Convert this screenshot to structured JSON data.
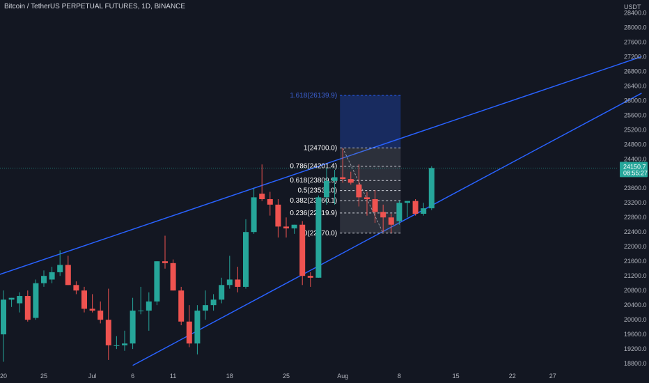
{
  "header": {
    "title": "Bitcoin / TetherUS PERPETUAL FUTURES, 1D, BINANCE",
    "currency": "USDT"
  },
  "colors": {
    "background": "#131722",
    "up": "#26a69a",
    "down": "#ef5350",
    "trendline": "#2962ff",
    "axis_text": "#b2b5be",
    "price_tag": "#26a69a"
  },
  "price_tag": {
    "price": "24150.7",
    "countdown": "08:55:27"
  },
  "chart_data": {
    "type": "candlestick",
    "yaxis_ticks": [
      18800,
      19200,
      19600,
      20000,
      20400,
      20800,
      21200,
      21600,
      22000,
      22400,
      22800,
      23200,
      23600,
      24000,
      24400,
      24800,
      25200,
      25600,
      26000,
      26400,
      26800,
      27200,
      27600,
      28000,
      28400
    ],
    "ylim": [
      18650,
      28750
    ],
    "xaxis_labels": [
      {
        "label": "20",
        "index": 0
      },
      {
        "label": "25",
        "index": 5
      },
      {
        "label": "Jul",
        "index": 11
      },
      {
        "label": "6",
        "index": 16
      },
      {
        "label": "11",
        "index": 21
      },
      {
        "label": "18",
        "index": 28
      },
      {
        "label": "25",
        "index": 35
      },
      {
        "label": "Aug",
        "index": 42
      },
      {
        "label": "8",
        "index": 49
      },
      {
        "label": "15",
        "index": 56
      },
      {
        "label": "22",
        "index": 63
      },
      {
        "label": "27",
        "index": 68
      }
    ],
    "candles": [
      {
        "o": 19600,
        "h": 20800,
        "l": 18850,
        "c": 20550
      },
      {
        "o": 20550,
        "h": 20600,
        "l": 20350,
        "c": 20600
      },
      {
        "o": 20450,
        "h": 20750,
        "l": 20200,
        "c": 20650
      },
      {
        "o": 20650,
        "h": 20800,
        "l": 19950,
        "c": 20000
      },
      {
        "o": 20050,
        "h": 21100,
        "l": 20000,
        "c": 21000
      },
      {
        "o": 21000,
        "h": 21350,
        "l": 20900,
        "c": 21200
      },
      {
        "o": 21100,
        "h": 21450,
        "l": 21000,
        "c": 21300
      },
      {
        "o": 21300,
        "h": 21900,
        "l": 21200,
        "c": 21500
      },
      {
        "o": 21500,
        "h": 21750,
        "l": 20950,
        "c": 20950
      },
      {
        "o": 20950,
        "h": 21050,
        "l": 20700,
        "c": 20800
      },
      {
        "o": 20800,
        "h": 20900,
        "l": 20200,
        "c": 20300
      },
      {
        "o": 20300,
        "h": 20700,
        "l": 20200,
        "c": 20250
      },
      {
        "o": 20250,
        "h": 20500,
        "l": 19900,
        "c": 20000
      },
      {
        "o": 20000,
        "h": 20850,
        "l": 18900,
        "c": 19300
      },
      {
        "o": 19300,
        "h": 19550,
        "l": 19200,
        "c": 19300
      },
      {
        "o": 19300,
        "h": 19700,
        "l": 19150,
        "c": 19350
      },
      {
        "o": 19350,
        "h": 20600,
        "l": 19200,
        "c": 20250
      },
      {
        "o": 20250,
        "h": 20900,
        "l": 20150,
        "c": 20250
      },
      {
        "o": 20250,
        "h": 20750,
        "l": 19700,
        "c": 20500
      },
      {
        "o": 20500,
        "h": 21600,
        "l": 20400,
        "c": 21600
      },
      {
        "o": 21600,
        "h": 22300,
        "l": 21400,
        "c": 21550
      },
      {
        "o": 21550,
        "h": 21650,
        "l": 20800,
        "c": 20800
      },
      {
        "o": 20800,
        "h": 20900,
        "l": 19850,
        "c": 19950
      },
      {
        "o": 19950,
        "h": 20400,
        "l": 19250,
        "c": 19350
      },
      {
        "o": 19350,
        "h": 20400,
        "l": 19050,
        "c": 20250
      },
      {
        "o": 20250,
        "h": 20800,
        "l": 20000,
        "c": 20400
      },
      {
        "o": 20400,
        "h": 20700,
        "l": 20250,
        "c": 20550
      },
      {
        "o": 20550,
        "h": 21150,
        "l": 20450,
        "c": 20950
      },
      {
        "o": 20950,
        "h": 21750,
        "l": 20850,
        "c": 21100
      },
      {
        "o": 21100,
        "h": 21450,
        "l": 20750,
        "c": 20900
      },
      {
        "o": 20900,
        "h": 22750,
        "l": 20850,
        "c": 22400
      },
      {
        "o": 22400,
        "h": 23600,
        "l": 22350,
        "c": 23350
      },
      {
        "o": 23450,
        "h": 24250,
        "l": 23250,
        "c": 23300
      },
      {
        "o": 23300,
        "h": 23500,
        "l": 22850,
        "c": 23150
      },
      {
        "o": 23150,
        "h": 23300,
        "l": 22250,
        "c": 22550
      },
      {
        "o": 22550,
        "h": 22800,
        "l": 22250,
        "c": 22500
      },
      {
        "o": 22500,
        "h": 22600,
        "l": 22350,
        "c": 22600
      },
      {
        "o": 22600,
        "h": 22700,
        "l": 20950,
        "c": 21200
      },
      {
        "o": 21200,
        "h": 21300,
        "l": 20900,
        "c": 21150
      },
      {
        "o": 21150,
        "h": 23400,
        "l": 21150,
        "c": 23350
      },
      {
        "o": 23350,
        "h": 24150,
        "l": 23150,
        "c": 23800
      },
      {
        "o": 23800,
        "h": 24100,
        "l": 23150,
        "c": 23900
      },
      {
        "o": 23900,
        "h": 24700,
        "l": 23750,
        "c": 23850
      },
      {
        "o": 23850,
        "h": 24050,
        "l": 23700,
        "c": 23750
      },
      {
        "o": 23700,
        "h": 24250,
        "l": 23100,
        "c": 23350
      },
      {
        "o": 23350,
        "h": 23500,
        "l": 22850,
        "c": 23300
      },
      {
        "o": 23300,
        "h": 23550,
        "l": 22650,
        "c": 22950
      },
      {
        "o": 22950,
        "h": 23150,
        "l": 22400,
        "c": 22800
      },
      {
        "o": 22800,
        "h": 22900,
        "l": 22370,
        "c": 22600
      },
      {
        "o": 22700,
        "h": 23250,
        "l": 22600,
        "c": 23200
      },
      {
        "o": 23200,
        "h": 23250,
        "l": 22800,
        "c": 23250
      },
      {
        "o": 23250,
        "h": 23300,
        "l": 22850,
        "c": 22900
      },
      {
        "o": 22900,
        "h": 23200,
        "l": 22850,
        "c": 23050
      },
      {
        "o": 23050,
        "h": 24200,
        "l": 23000,
        "c": 24150.7
      }
    ],
    "trendlines": [
      {
        "from": {
          "index": -1,
          "price": 21200
        },
        "to": {
          "index": 79,
          "price": 27200
        }
      },
      {
        "from": {
          "index": 16,
          "price": 18750
        },
        "to": {
          "index": 79,
          "price": 26200
        }
      }
    ],
    "fibonacci": {
      "start_index": 42,
      "end_index": 47,
      "low": 22370,
      "high": 24700,
      "levels": [
        {
          "label": "1.618(26139.9)",
          "price": 26139.9,
          "extension": true
        },
        {
          "label": "1(24700.0)",
          "price": 24700.0
        },
        {
          "label": "0.786(24201.4)",
          "price": 24201.4
        },
        {
          "label": "0.618(23809.9)",
          "price": 23809.9
        },
        {
          "label": "0.5(23535.0)",
          "price": 23535.0
        },
        {
          "label": "0.382(23260.1)",
          "price": 23260.1
        },
        {
          "label": "0.236(22919.9)",
          "price": 22919.9
        },
        {
          "label": "0(22370.0)",
          "price": 22370.0
        }
      ]
    }
  }
}
